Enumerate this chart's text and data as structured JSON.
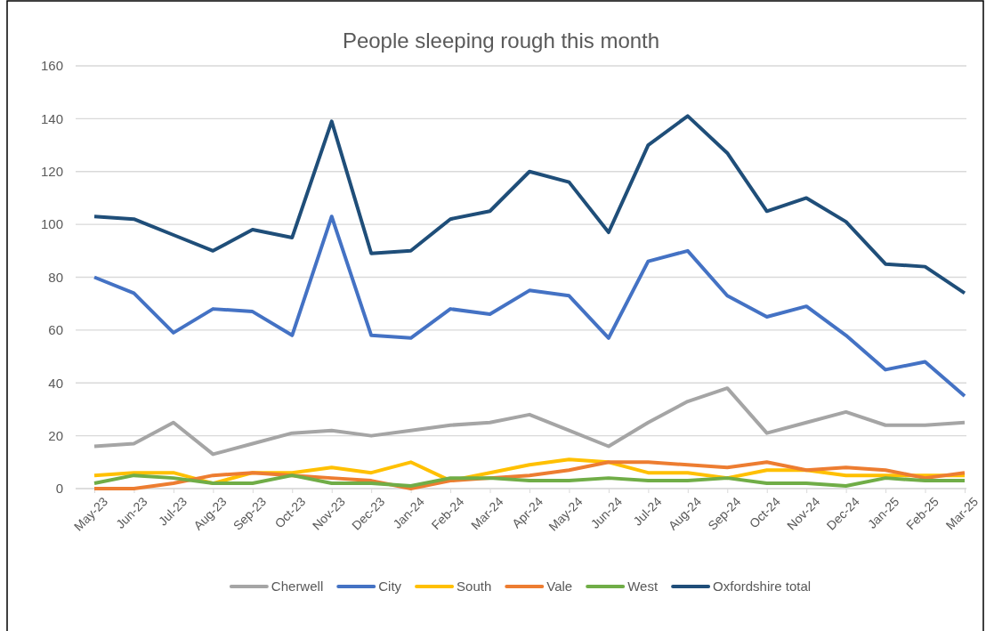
{
  "chart_data": {
    "type": "line",
    "title": "People sleeping rough this month",
    "categories": [
      "May-23",
      "Jun-23",
      "Jul-23",
      "Aug-23",
      "Sep-23",
      "Oct-23",
      "Nov-23",
      "Dec-23",
      "Jan-24",
      "Feb-24",
      "Mar-24",
      "Apr-24",
      "May-24",
      "Jun-24",
      "Jul-24",
      "Aug-24",
      "Sep-24",
      "Oct-24",
      "Nov-24",
      "Dec-24",
      "Jan-25",
      "Feb-25",
      "Mar-25"
    ],
    "series": [
      {
        "name": "Cherwell",
        "color": "#a5a5a5",
        "values": [
          16,
          17,
          25,
          13,
          17,
          21,
          22,
          20,
          22,
          24,
          25,
          28,
          22,
          16,
          25,
          33,
          38,
          21,
          25,
          29,
          24,
          24,
          25
        ]
      },
      {
        "name": "City",
        "color": "#4472c4",
        "values": [
          80,
          74,
          59,
          68,
          67,
          58,
          103,
          58,
          57,
          68,
          66,
          75,
          73,
          57,
          86,
          90,
          73,
          65,
          69,
          58,
          45,
          48,
          35
        ]
      },
      {
        "name": "South",
        "color": "#ffc000",
        "values": [
          5,
          6,
          6,
          2,
          6,
          6,
          8,
          6,
          10,
          3,
          6,
          9,
          11,
          10,
          6,
          6,
          4,
          7,
          7,
          5,
          5,
          5,
          5
        ]
      },
      {
        "name": "Vale",
        "color": "#ed7d31",
        "values": [
          0,
          0,
          2,
          5,
          6,
          5,
          4,
          3,
          0,
          3,
          4,
          5,
          7,
          10,
          10,
          9,
          8,
          10,
          7,
          8,
          7,
          4,
          6
        ]
      },
      {
        "name": "West",
        "color": "#70ad47",
        "values": [
          2,
          5,
          4,
          2,
          2,
          5,
          2,
          2,
          1,
          4,
          4,
          3,
          3,
          4,
          3,
          3,
          4,
          2,
          2,
          1,
          4,
          3,
          3
        ]
      },
      {
        "name": "Oxfordshire total",
        "color": "#1f4e79",
        "values": [
          103,
          102,
          96,
          90,
          98,
          95,
          139,
          89,
          90,
          102,
          105,
          120,
          116,
          97,
          130,
          141,
          127,
          105,
          110,
          101,
          85,
          84,
          74
        ]
      }
    ],
    "ylim": [
      0,
      160
    ],
    "yticks": [
      0,
      20,
      40,
      60,
      80,
      100,
      120,
      140,
      160
    ],
    "grid": "y",
    "legend": "bottom",
    "marker": "none",
    "line_style": "solid"
  }
}
